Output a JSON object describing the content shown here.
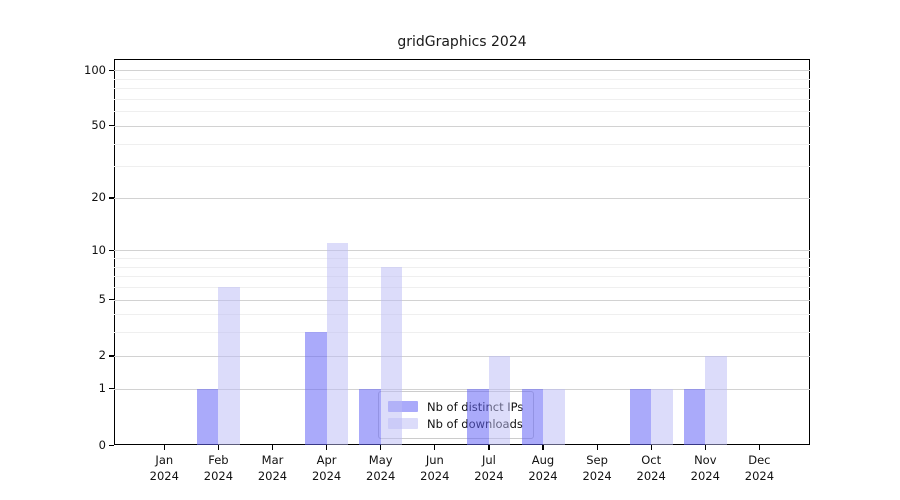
{
  "title": "gridGraphics 2024",
  "chart_data": {
    "type": "bar",
    "title": "gridGraphics 2024",
    "x_month_labels": [
      "Jan",
      "Feb",
      "Mar",
      "Apr",
      "May",
      "Jun",
      "Jul",
      "Aug",
      "Sep",
      "Oct",
      "Nov",
      "Dec"
    ],
    "x_year_label": "2024",
    "series": [
      {
        "name": "Nb of distinct IPs",
        "color": "rgba(100,100,245,0.55)",
        "values": [
          0,
          1,
          0,
          3,
          1,
          0,
          1,
          1,
          0,
          1,
          1,
          0
        ]
      },
      {
        "name": "Nb of downloads",
        "color": "rgba(185,185,245,0.50)",
        "values": [
          0,
          6,
          0,
          11,
          8,
          0,
          2,
          1,
          0,
          1,
          2,
          0
        ]
      }
    ],
    "y_scale": "log10(value+1)",
    "y_ticks": [
      0,
      1,
      2,
      5,
      10,
      20,
      50,
      100
    ],
    "y_minor_ticks": [
      3,
      4,
      6,
      7,
      8,
      9,
      30,
      40,
      60,
      70,
      80,
      90
    ],
    "y_axis_top_value": 115,
    "grid": true,
    "legend_position": "inside lower center",
    "colors": {
      "distinct_ips_bar": "#a9a9fa",
      "downloads_bar": "#dcdcf9",
      "major_grid": "#d2d2d2",
      "minor_grid": "#efefef",
      "axis": "#000000",
      "legend_border": "#cccccc"
    }
  }
}
